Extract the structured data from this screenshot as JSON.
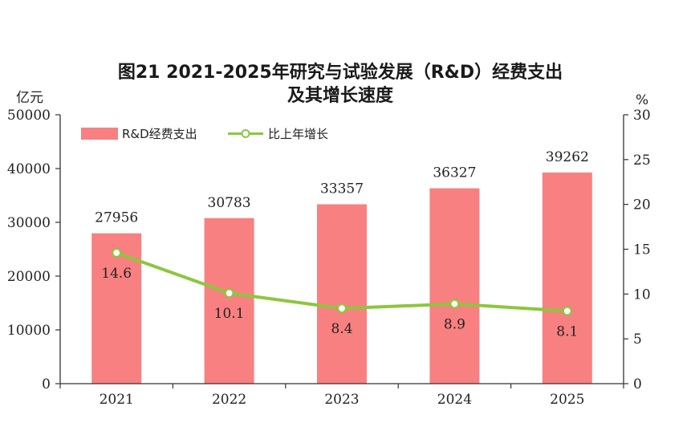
{
  "title_line1": "图21   2021-2025年研究与试验发展（R&D）经费支出",
  "title_line2": "及其增长速度",
  "left_unit": "亿元",
  "right_unit": "%",
  "legend": {
    "bar": "R&D经费支出",
    "line": "比上年增长"
  },
  "colors": {
    "bar": "#f88080",
    "line": "#8dc63f",
    "axis": "#333333"
  },
  "chart_data": {
    "type": "bar",
    "categories": [
      "2021",
      "2022",
      "2023",
      "2024",
      "2025"
    ],
    "series": [
      {
        "name": "R&D经费支出",
        "type": "bar",
        "axis": "left",
        "values": [
          27956,
          30783,
          33357,
          36327,
          39262
        ]
      },
      {
        "name": "比上年增长",
        "type": "line",
        "axis": "right",
        "values": [
          14.6,
          10.1,
          8.4,
          8.9,
          8.1
        ]
      }
    ],
    "bar_labels": [
      "27956",
      "30783",
      "33357",
      "36327",
      "39262"
    ],
    "line_labels": [
      "14.6",
      "10.1",
      "8.4",
      "8.9",
      "8.1"
    ],
    "y_left": {
      "min": 0,
      "max": 50000,
      "ticks": [
        0,
        10000,
        20000,
        30000,
        40000,
        50000
      ]
    },
    "y_right": {
      "min": 0,
      "max": 30,
      "ticks": [
        0,
        5,
        10,
        15,
        20,
        25,
        30
      ]
    },
    "legend_position": "top-left",
    "grid": false
  }
}
